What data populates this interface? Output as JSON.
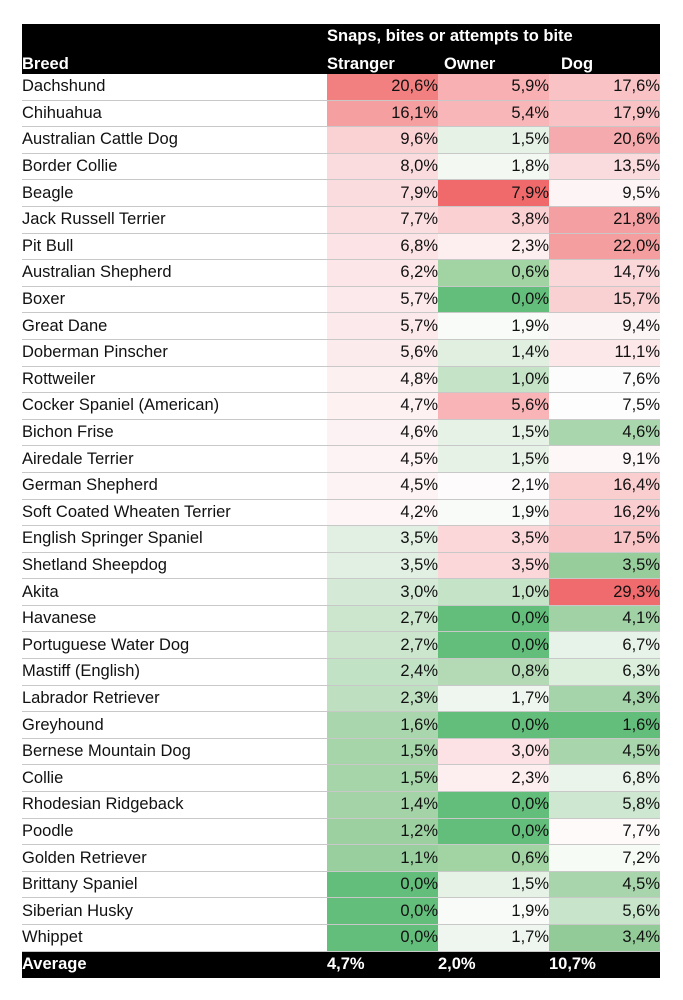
{
  "header": {
    "group_label": "Snaps, bites or attempts to bite",
    "breed_label": "Breed",
    "col_labels": [
      "Stranger",
      "Owner",
      "Dog"
    ]
  },
  "rows": [
    {
      "breed": "Dachshund",
      "stranger": "20,6%",
      "owner": "5,9%",
      "dog": "17,6%",
      "stranger_color": "#f28080",
      "owner_color": "#f8b0b2",
      "dog_color": "#f9c3c5"
    },
    {
      "breed": "Chihuahua",
      "stranger": "16,1%",
      "owner": "5,4%",
      "dog": "17,9%",
      "stranger_color": "#f59fa0",
      "owner_color": "#f9b6b8",
      "dog_color": "#f9c2c4"
    },
    {
      "breed": "Australian Cattle Dog",
      "stranger": "9,6%",
      "owner": "1,5%",
      "dog": "20,6%",
      "stranger_color": "#fad2d4",
      "owner_color": "#e6f2e6",
      "dog_color": "#f5abad"
    },
    {
      "breed": "Border Collie",
      "stranger": "8,0%",
      "owner": "1,8%",
      "dog": "13,5%",
      "stranger_color": "#fbdcde",
      "owner_color": "#f3f8f3",
      "dog_color": "#fbdcde"
    },
    {
      "breed": "Beagle",
      "stranger": "7,9%",
      "owner": "7,9%",
      "dog": "9,5%",
      "stranger_color": "#fbdcde",
      "owner_color": "#f06a6c",
      "dog_color": "#fcf4f5"
    },
    {
      "breed": "Jack Russell Terrier",
      "stranger": "7,7%",
      "owner": "3,8%",
      "dog": "21,8%",
      "stranger_color": "#fbdee0",
      "owner_color": "#fad0d2",
      "dog_color": "#f4a0a2"
    },
    {
      "breed": "Pit Bull",
      "stranger": "6,8%",
      "owner": "2,3%",
      "dog": "22,0%",
      "stranger_color": "#fce3e5",
      "owner_color": "#fdeff0",
      "dog_color": "#f49e9f"
    },
    {
      "breed": "Australian Shepherd",
      "stranger": "6,2%",
      "owner": "0,6%",
      "dog": "14,7%",
      "stranger_color": "#fce6e8",
      "owner_color": "#a1d3a3",
      "dog_color": "#fad7d9"
    },
    {
      "breed": "Boxer",
      "stranger": "5,7%",
      "owner": "0,0%",
      "dog": "15,7%",
      "stranger_color": "#fce9eb",
      "owner_color": "#63be7b",
      "dog_color": "#fad1d3"
    },
    {
      "breed": "Great Dane",
      "stranger": "5,7%",
      "owner": "1,9%",
      "dog": "9,4%",
      "stranger_color": "#fce9eb",
      "owner_color": "#f8fbf8",
      "dog_color": "#fcf5f6"
    },
    {
      "breed": "Doberman Pinscher",
      "stranger": "5,6%",
      "owner": "1,4%",
      "dog": "11,1%",
      "stranger_color": "#fcebec",
      "owner_color": "#e1efe1",
      "dog_color": "#fce7e9"
    },
    {
      "breed": "Rottweiler",
      "stranger": "4,8%",
      "owner": "1,0%",
      "dog": "7,6%",
      "stranger_color": "#fdf0f1",
      "owner_color": "#c5e3c6",
      "dog_color": "#fcfcfc"
    },
    {
      "breed": "Cocker Spaniel (American)",
      "stranger": "4,7%",
      "owner": "5,6%",
      "dog": "7,5%",
      "stranger_color": "#fdf1f2",
      "owner_color": "#f8b4b6",
      "dog_color": "#fdfdfd"
    },
    {
      "breed": "Bichon Frise",
      "stranger": "4,6%",
      "owner": "1,5%",
      "dog": "4,6%",
      "stranger_color": "#fdf2f3",
      "owner_color": "#e6f2e6",
      "dog_color": "#aad6ad"
    },
    {
      "breed": "Airedale Terrier",
      "stranger": "4,5%",
      "owner": "1,5%",
      "dog": "9,1%",
      "stranger_color": "#fdf3f4",
      "owner_color": "#e6f2e6",
      "dog_color": "#fdf7f8"
    },
    {
      "breed": "German Shepherd",
      "stranger": "4,5%",
      "owner": "2,1%",
      "dog": "16,4%",
      "stranger_color": "#fdf3f4",
      "owner_color": "#fdfbfb",
      "dog_color": "#facdcf"
    },
    {
      "breed": "Soft Coated Wheaten Terrier",
      "stranger": "4,2%",
      "owner": "1,9%",
      "dog": "16,2%",
      "stranger_color": "#fdf5f6",
      "owner_color": "#f8fbf8",
      "dog_color": "#face d0"
    },
    {
      "breed": "English Springer Spaniel",
      "stranger": "3,5%",
      "owner": "3,5%",
      "dog": "17,5%",
      "stranger_color": "#e2f0e3",
      "owner_color": "#fbd7d9",
      "dog_color": "#f9c4c6"
    },
    {
      "breed": "Shetland Sheepdog",
      "stranger": "3,5%",
      "owner": "3,5%",
      "dog": "3,5%",
      "stranger_color": "#e2f0e3",
      "owner_color": "#fbd7d9",
      "dog_color": "#96cd9b"
    },
    {
      "breed": "Akita",
      "stranger": "3,0%",
      "owner": "1,0%",
      "dog": "29,3%",
      "stranger_color": "#d4ead6",
      "owner_color": "#c5e3c6",
      "dog_color": "#f06b6d"
    },
    {
      "breed": "Havanese",
      "stranger": "2,7%",
      "owner": "0,0%",
      "dog": "4,1%",
      "stranger_color": "#cbe6cd",
      "owner_color": "#63be7b",
      "dog_color": "#a1d2a6"
    },
    {
      "breed": "Portuguese Water Dog",
      "stranger": "2,7%",
      "owner": "0,0%",
      "dog": "6,7%",
      "stranger_color": "#cbe6cd",
      "owner_color": "#63be7b",
      "dog_color": "#e7f3e8"
    },
    {
      "breed": "Mastiff (English)",
      "stranger": "2,4%",
      "owner": "0,8%",
      "dog": "6,3%",
      "stranger_color": "#c2e2c5",
      "owner_color": "#b3dab5",
      "dog_color": "#dcefdd"
    },
    {
      "breed": "Labrador Retriever",
      "stranger": "2,3%",
      "owner": "1,7%",
      "dog": "4,3%",
      "stranger_color": "#bee0c1",
      "owner_color": "#eff6ef",
      "dog_color": "#a5d4aa"
    },
    {
      "breed": "Greyhound",
      "stranger": "1,6%",
      "owner": "0,0%",
      "dog": "1,6%",
      "stranger_color": "#a9d6ad",
      "owner_color": "#63be7b",
      "dog_color": "#63be7b"
    },
    {
      "breed": "Bernese Mountain Dog",
      "stranger": "1,5%",
      "owner": "3,0%",
      "dog": "4,5%",
      "stranger_color": "#a6d5aa",
      "owner_color": "#fce2e4",
      "dog_color": "#a8d5ac"
    },
    {
      "breed": "Collie",
      "stranger": "1,5%",
      "owner": "2,3%",
      "dog": "6,8%",
      "stranger_color": "#a6d5aa",
      "owner_color": "#fdeff0",
      "dog_color": "#eaf4ea"
    },
    {
      "breed": "Rhodesian Ridgeback",
      "stranger": "1,4%",
      "owner": "0,0%",
      "dog": "5,8%",
      "stranger_color": "#a3d3a7",
      "owner_color": "#63be7b",
      "dog_color": "#cde7d0"
    },
    {
      "breed": "Poodle",
      "stranger": "1,2%",
      "owner": "0,0%",
      "dog": "7,7%",
      "stranger_color": "#9dd0a1",
      "owner_color": "#63be7b",
      "dog_color": "#fefafa"
    },
    {
      "breed": "Golden Retriever",
      "stranger": "1,1%",
      "owner": "0,6%",
      "dog": "7,2%",
      "stranger_color": "#99cf9e",
      "owner_color": "#a1d3a3",
      "dog_color": "#f6fbf6"
    },
    {
      "breed": "Brittany Spaniel",
      "stranger": "0,0%",
      "owner": "1,5%",
      "dog": "4,5%",
      "stranger_color": "#63be7b",
      "owner_color": "#e6f2e6",
      "dog_color": "#a8d5ac"
    },
    {
      "breed": "Siberian Husky",
      "stranger": "0,0%",
      "owner": "1,9%",
      "dog": "5,6%",
      "stranger_color": "#63be7b",
      "owner_color": "#f8fbf8",
      "dog_color": "#c8e4cb"
    },
    {
      "breed": "Whippet",
      "stranger": "0,0%",
      "owner": "1,7%",
      "dog": "3,4%",
      "stranger_color": "#63be7b",
      "owner_color": "#eff6ef",
      "dog_color": "#92cb97"
    }
  ],
  "footer": {
    "label": "Average",
    "stranger": "4,7%",
    "owner": "2,0%",
    "dog": "10,7%"
  }
}
